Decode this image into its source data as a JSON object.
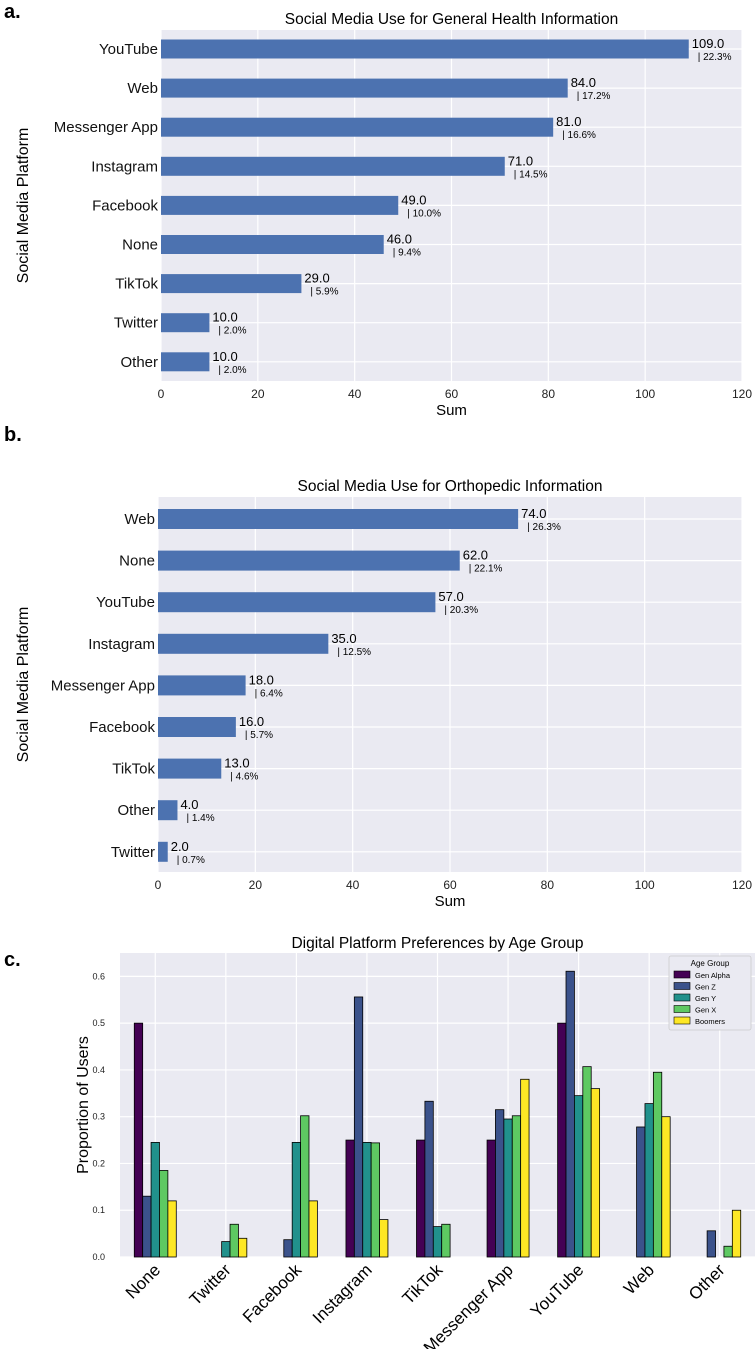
{
  "chart_data": [
    {
      "panel": "a.",
      "type": "bar",
      "orientation": "horizontal",
      "title": "Social Media Use for General Health Information",
      "xlabel": "Sum",
      "ylabel": "Social Media Platform",
      "xlim": [
        0,
        120
      ],
      "xticks": [
        "0",
        "20",
        "40",
        "60",
        "80",
        "100",
        "120"
      ],
      "categories": [
        "YouTube",
        "Web",
        "Messenger App",
        "Instagram",
        "Facebook",
        "None",
        "TikTok",
        "Twitter",
        "Other"
      ],
      "values": [
        109.0,
        84.0,
        81.0,
        71.0,
        49.0,
        46.0,
        29.0,
        10.0,
        10.0
      ],
      "value_labels": [
        "109.0",
        "84.0",
        "81.0",
        "71.0",
        "49.0",
        "46.0",
        "29.0",
        "10.0",
        "10.0"
      ],
      "percent_labels": [
        "| 22.3%",
        "| 17.2%",
        "| 16.6%",
        "| 14.5%",
        "| 10.0%",
        "| 9.4%",
        "| 5.9%",
        "| 2.0%",
        "| 2.0%"
      ],
      "grid": true,
      "bar_color": "#4c72b0"
    },
    {
      "panel": "b.",
      "type": "bar",
      "orientation": "horizontal",
      "title": "Social Media Use for Orthopedic Information",
      "xlabel": "Sum",
      "ylabel": "Social Media Platform",
      "xlim": [
        0,
        120
      ],
      "xticks": [
        "0",
        "20",
        "40",
        "60",
        "80",
        "100",
        "120"
      ],
      "categories": [
        "Web",
        "None",
        "YouTube",
        "Instagram",
        "Messenger App",
        "Facebook",
        "TikTok",
        "Other",
        "Twitter"
      ],
      "values": [
        74.0,
        62.0,
        57.0,
        35.0,
        18.0,
        16.0,
        13.0,
        4.0,
        2.0
      ],
      "value_labels": [
        "74.0",
        "62.0",
        "57.0",
        "35.0",
        "18.0",
        "16.0",
        "13.0",
        "4.0",
        "2.0"
      ],
      "percent_labels": [
        "| 26.3%",
        "| 22.1%",
        "| 20.3%",
        "| 12.5%",
        "| 6.4%",
        "| 5.7%",
        "| 4.6%",
        "| 1.4%",
        "| 0.7%"
      ],
      "grid": true,
      "bar_color": "#4c72b0"
    },
    {
      "panel": "c.",
      "type": "bar",
      "orientation": "vertical",
      "title": "Digital Platform Preferences by Age Group",
      "xlabel": "",
      "ylabel": "Proportion of Users",
      "ylim": [
        0,
        0.65
      ],
      "yticks": [
        "0.0",
        "0.1",
        "0.2",
        "0.3",
        "0.4",
        "0.5",
        "0.6"
      ],
      "categories": [
        "None",
        "Twitter",
        "Facebook",
        "Instagram",
        "TikTok",
        "Messenger App",
        "YouTube",
        "Web",
        "Other"
      ],
      "legend_title": "Age Group",
      "legend_position": "top-right",
      "grid": true,
      "series": [
        {
          "name": "Gen Alpha",
          "color": "#440154",
          "values": [
            0.5,
            0.0,
            0.0,
            0.25,
            0.25,
            0.25,
            0.5,
            0.0,
            0.0
          ]
        },
        {
          "name": "Gen Z",
          "color": "#3b528b",
          "values": [
            0.13,
            0.0,
            0.037,
            0.556,
            0.333,
            0.315,
            0.611,
            0.278,
            0.056
          ]
        },
        {
          "name": "Gen Y",
          "color": "#21918c",
          "values": [
            0.245,
            0.033,
            0.245,
            0.245,
            0.065,
            0.295,
            0.345,
            0.328,
            0.0
          ]
        },
        {
          "name": "Gen X",
          "color": "#5ec962",
          "values": [
            0.185,
            0.07,
            0.302,
            0.244,
            0.07,
            0.302,
            0.407,
            0.395,
            0.023
          ]
        },
        {
          "name": "Boomers",
          "color": "#fde725",
          "values": [
            0.12,
            0.04,
            0.12,
            0.08,
            0.0,
            0.38,
            0.36,
            0.3,
            0.1
          ]
        }
      ]
    }
  ]
}
